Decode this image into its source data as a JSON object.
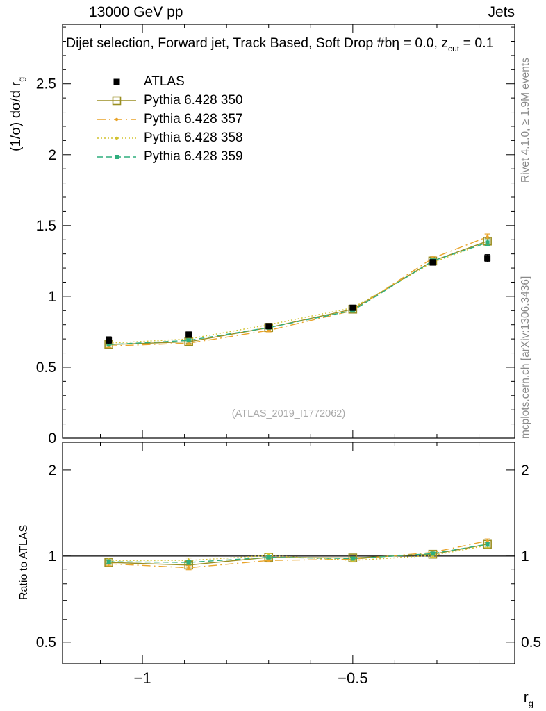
{
  "header": {
    "left": "13000 GeV pp",
    "right": "Jets"
  },
  "plot": {
    "title_prefix": "Dijet selection, Forward jet, Track Based, Soft Drop #bη = 0.0, z",
    "title_sub": "cut",
    "title_suffix": " = 0.1",
    "y_label_prefix": "(1/σ) dσ/d r",
    "y_label_sub": "g",
    "ratio_label": "Ratio to ATLAS",
    "x_label_prefix": "r",
    "x_label_sub": "g",
    "right_text_top": "Rivet 4.1.0, ≥ 1.9M events",
    "right_text_bottom": "mcplots.cern.ch [arXiv:1306.3436]",
    "watermark": "(ATLAS_2019_I1772062)"
  },
  "chart_data": {
    "type": "line",
    "xlabel": "r_g",
    "ylabel": "(1/σ) dσ/d r_g",
    "x": [
      -1.08,
      -0.89,
      -0.7,
      -0.5,
      -0.31,
      -0.18
    ],
    "xlim": [
      -1.19,
      -0.115
    ],
    "xticks": [
      -1,
      -0.5
    ],
    "xtick_labels": [
      "−1",
      "−0.5"
    ],
    "xticks_minor": [
      -1.1,
      -0.9,
      -0.8,
      -0.7,
      -0.6,
      -0.4,
      -0.3,
      -0.2
    ],
    "main_panel": {
      "ylim": [
        0,
        2.92
      ],
      "yticks": [
        0,
        0.5,
        1,
        1.5,
        2,
        2.5
      ],
      "ytick_labels": [
        "0",
        "0.5",
        "1",
        "1.5",
        "2",
        "2.5"
      ],
      "ytick_minor_step": 0.1,
      "series": [
        {
          "name": "ATLAS",
          "color": "#000000",
          "marker": "filled-square",
          "line": "none",
          "values": [
            0.69,
            0.73,
            0.79,
            0.92,
            1.24,
            1.27
          ],
          "errors": [
            0.025,
            0.02,
            0.015,
            0.015,
            0.02,
            0.025
          ]
        },
        {
          "name": "Pythia 6.428 350",
          "color": "#9a8e22",
          "marker": "open-square",
          "line": "solid",
          "values": [
            0.66,
            0.68,
            0.78,
            0.91,
            1.25,
            1.39
          ],
          "errors": [
            0.01,
            0.01,
            0.01,
            0.01,
            0.015,
            0.02
          ]
        },
        {
          "name": "Pythia 6.428 357",
          "color": "#e9a42a",
          "marker": "dot",
          "line": "dashdot",
          "values": [
            0.65,
            0.67,
            0.76,
            0.9,
            1.27,
            1.42
          ],
          "errors": [
            0.01,
            0.01,
            0.01,
            0.01,
            0.015,
            0.02
          ]
        },
        {
          "name": "Pythia 6.428 358",
          "color": "#d2c22e",
          "marker": "dot",
          "line": "dotted",
          "values": [
            0.67,
            0.7,
            0.8,
            0.92,
            1.24,
            1.38
          ],
          "errors": [
            0.01,
            0.01,
            0.01,
            0.01,
            0.015,
            0.02
          ]
        },
        {
          "name": "Pythia 6.428 359",
          "color": "#2fae7d",
          "marker": "filled-square-small",
          "line": "dashed",
          "values": [
            0.66,
            0.69,
            0.78,
            0.9,
            1.25,
            1.38
          ],
          "errors": [
            0.01,
            0.01,
            0.01,
            0.01,
            0.015,
            0.02
          ]
        }
      ]
    },
    "ratio_panel": {
      "scale": "log",
      "label": "Ratio to ATLAS",
      "ylim": [
        0.42,
        2.5
      ],
      "yticks": [
        0.5,
        1,
        2
      ],
      "ytick_labels": [
        "0.5",
        "1",
        "2"
      ],
      "yticks_minor": [
        0.6,
        0.7,
        0.8,
        0.9
      ],
      "baseline": 1,
      "series": [
        {
          "name": "Pythia 6.428 350",
          "values": [
            0.95,
            0.93,
            0.99,
            0.985,
            1.015,
            1.1
          ],
          "errors": [
            0.015,
            0.015,
            0.012,
            0.01,
            0.012,
            0.018
          ]
        },
        {
          "name": "Pythia 6.428 357",
          "values": [
            0.94,
            0.91,
            0.965,
            0.975,
            1.03,
            1.13
          ],
          "errors": [
            0.015,
            0.015,
            0.012,
            0.01,
            0.012,
            0.018
          ]
        },
        {
          "name": "Pythia 6.428 358",
          "values": [
            0.965,
            0.965,
            1.005,
            0.965,
            1.005,
            1.09
          ],
          "errors": [
            0.02,
            0.02,
            0.015,
            0.012,
            0.015,
            0.02
          ]
        },
        {
          "name": "Pythia 6.428 359",
          "values": [
            0.955,
            0.95,
            0.99,
            0.98,
            1.02,
            1.1
          ],
          "errors": [
            0.015,
            0.015,
            0.012,
            0.01,
            0.012,
            0.018
          ]
        }
      ]
    }
  }
}
